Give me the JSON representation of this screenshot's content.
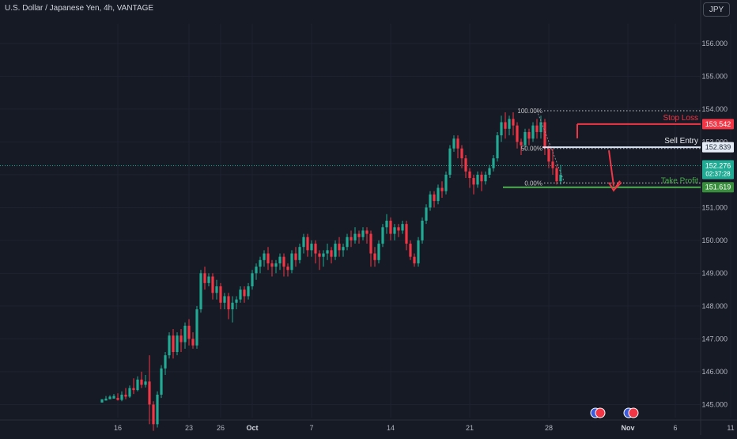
{
  "header": {
    "title": "U.S. Dollar / Japanese Yen, 4h, VANTAGE",
    "currency": "JPY"
  },
  "colors": {
    "bg": "#161a25",
    "up": "#22ab94",
    "down": "#f23645",
    "grid": "#1f2330",
    "text": "#b2b5be",
    "stop": "#f23645",
    "entry": "#e6e8ec",
    "profit": "#4caf50"
  },
  "chart_data": {
    "type": "candlestick",
    "title": "U.S. Dollar / Japanese Yen, 4h, VANTAGE",
    "ylim": [
      144.6,
      156.6
    ],
    "y_ticks": [
      156.0,
      155.0,
      154.0,
      153.0,
      152.0,
      151.0,
      150.0,
      149.0,
      148.0,
      147.0,
      146.0,
      145.0
    ],
    "y_tick_labels": [
      "156.000",
      "155.000",
      "154.000",
      "153.000",
      "152.000",
      "151.000",
      "150.000",
      "149.000",
      "148.000",
      "147.000",
      "146.000",
      "145.000"
    ],
    "x_ticks": [
      {
        "i": 4,
        "label": "16"
      },
      {
        "i": 22,
        "label": "23"
      },
      {
        "i": 30,
        "label": "26"
      },
      {
        "i": 38,
        "label": "Oct"
      },
      {
        "i": 53,
        "label": "7"
      },
      {
        "i": 73,
        "label": "14"
      },
      {
        "i": 93,
        "label": "21"
      },
      {
        "i": 113,
        "label": "28"
      },
      {
        "i": 133,
        "label": "Nov"
      },
      {
        "i": 145,
        "label": "6"
      },
      {
        "i": 159,
        "label": "11"
      }
    ],
    "grid": true,
    "candles": [
      [
        145.06,
        145.16,
        145.1,
        145.12
      ],
      [
        145.12,
        145.18,
        145.16,
        145.26
      ],
      [
        145.16,
        145.24,
        145.18,
        145.28
      ],
      [
        145.18,
        145.26,
        145.2,
        145.32
      ],
      [
        145.2,
        145.14,
        145.12,
        145.34
      ],
      [
        145.14,
        145.3,
        145.1,
        145.4
      ],
      [
        145.3,
        145.24,
        145.16,
        145.5
      ],
      [
        145.24,
        145.5,
        145.2,
        145.58
      ],
      [
        145.5,
        145.44,
        145.32,
        145.8
      ],
      [
        145.44,
        145.76,
        145.4,
        145.86
      ],
      [
        145.76,
        145.6,
        145.5,
        146.0
      ],
      [
        145.6,
        145.7,
        145.52,
        145.9
      ],
      [
        145.7,
        145.0,
        144.4,
        146.5
      ],
      [
        145.0,
        144.4,
        144.2,
        145.1
      ],
      [
        144.4,
        145.3,
        144.3,
        145.4
      ],
      [
        145.3,
        146.1,
        145.2,
        146.2
      ],
      [
        146.1,
        146.5,
        145.9,
        146.6
      ],
      [
        146.5,
        147.1,
        146.4,
        147.2
      ],
      [
        147.1,
        146.6,
        146.4,
        147.3
      ],
      [
        146.6,
        147.1,
        146.5,
        147.2
      ],
      [
        147.1,
        146.9,
        146.6,
        147.3
      ],
      [
        146.9,
        147.4,
        146.7,
        147.5
      ],
      [
        147.4,
        147.0,
        146.8,
        147.6
      ],
      [
        147.0,
        146.8,
        146.7,
        147.2
      ],
      [
        146.8,
        147.9,
        146.7,
        148.0
      ],
      [
        147.9,
        149.0,
        147.8,
        149.1
      ],
      [
        149.0,
        148.7,
        148.5,
        149.2
      ],
      [
        148.7,
        148.9,
        148.6,
        149.0
      ],
      [
        148.9,
        148.4,
        148.2,
        149.0
      ],
      [
        148.4,
        148.6,
        148.2,
        148.8
      ],
      [
        148.6,
        148.1,
        147.9,
        148.7
      ],
      [
        148.1,
        148.3,
        147.9,
        148.4
      ],
      [
        148.3,
        147.9,
        147.6,
        148.4
      ],
      [
        147.9,
        148.1,
        147.5,
        148.3
      ],
      [
        148.1,
        148.2,
        147.9,
        148.3
      ],
      [
        148.2,
        148.5,
        148.1,
        148.6
      ],
      [
        148.5,
        148.3,
        148.1,
        148.6
      ],
      [
        148.3,
        148.6,
        148.2,
        148.7
      ],
      [
        148.6,
        149.0,
        148.5,
        149.1
      ],
      [
        149.0,
        149.2,
        148.8,
        149.3
      ],
      [
        149.2,
        149.4,
        149.0,
        149.5
      ],
      [
        149.4,
        149.6,
        149.2,
        149.7
      ],
      [
        149.6,
        149.3,
        149.1,
        149.8
      ],
      [
        149.3,
        149.2,
        148.9,
        149.4
      ],
      [
        149.2,
        149.3,
        149.0,
        149.4
      ],
      [
        149.3,
        149.5,
        149.1,
        149.6
      ],
      [
        149.5,
        149.2,
        148.9,
        149.6
      ],
      [
        149.2,
        149.1,
        148.9,
        149.3
      ],
      [
        149.1,
        149.6,
        149.0,
        149.7
      ],
      [
        149.6,
        149.4,
        149.2,
        149.8
      ],
      [
        149.4,
        149.8,
        149.3,
        149.9
      ],
      [
        149.8,
        150.1,
        149.6,
        150.2
      ],
      [
        150.1,
        149.7,
        149.5,
        150.2
      ],
      [
        149.7,
        149.9,
        149.5,
        150.0
      ],
      [
        149.9,
        149.6,
        149.3,
        150.0
      ],
      [
        149.6,
        149.5,
        149.1,
        149.7
      ],
      [
        149.5,
        149.6,
        149.2,
        149.7
      ],
      [
        149.6,
        149.7,
        149.4,
        149.9
      ],
      [
        149.7,
        149.5,
        149.3,
        149.8
      ],
      [
        149.5,
        149.9,
        149.4,
        150.0
      ],
      [
        149.9,
        149.7,
        149.5,
        150.1
      ],
      [
        149.7,
        149.8,
        149.5,
        149.9
      ],
      [
        149.8,
        150.1,
        149.7,
        150.2
      ],
      [
        150.1,
        150.0,
        149.8,
        150.3
      ],
      [
        150.0,
        150.2,
        149.9,
        150.4
      ],
      [
        150.2,
        150.1,
        149.9,
        150.3
      ],
      [
        150.1,
        150.3,
        150.0,
        150.4
      ],
      [
        150.3,
        150.2,
        149.9,
        150.4
      ],
      [
        150.2,
        149.6,
        149.2,
        150.3
      ],
      [
        149.6,
        149.4,
        149.2,
        149.8
      ],
      [
        149.4,
        149.9,
        149.3,
        150.0
      ],
      [
        149.9,
        150.4,
        149.8,
        150.5
      ],
      [
        150.4,
        150.6,
        150.2,
        150.8
      ],
      [
        150.6,
        150.2,
        150.0,
        150.7
      ],
      [
        150.2,
        150.4,
        150.0,
        150.5
      ],
      [
        150.4,
        150.3,
        150.1,
        150.5
      ],
      [
        150.3,
        150.5,
        150.2,
        150.6
      ],
      [
        150.5,
        149.9,
        149.7,
        150.6
      ],
      [
        149.9,
        149.5,
        149.4,
        150.0
      ],
      [
        149.5,
        149.3,
        149.2,
        149.6
      ],
      [
        149.3,
        150.0,
        149.2,
        150.1
      ],
      [
        150.0,
        150.6,
        149.9,
        150.7
      ],
      [
        150.6,
        151.0,
        150.5,
        151.1
      ],
      [
        151.0,
        151.4,
        150.9,
        151.5
      ],
      [
        151.4,
        151.2,
        151.0,
        151.5
      ],
      [
        151.2,
        151.6,
        151.1,
        151.7
      ],
      [
        151.6,
        151.5,
        151.3,
        151.8
      ],
      [
        151.5,
        152.0,
        151.4,
        152.1
      ],
      [
        152.0,
        152.8,
        151.9,
        152.9
      ],
      [
        152.8,
        153.1,
        152.7,
        153.2
      ],
      [
        153.1,
        152.8,
        152.5,
        153.2
      ],
      [
        152.8,
        152.5,
        152.2,
        152.9
      ],
      [
        152.5,
        152.1,
        151.9,
        152.6
      ],
      [
        152.1,
        151.9,
        151.6,
        152.2
      ],
      [
        151.9,
        151.7,
        151.4,
        152.0
      ],
      [
        151.7,
        152.0,
        151.6,
        152.1
      ],
      [
        152.0,
        151.8,
        151.5,
        152.1
      ],
      [
        151.8,
        152.0,
        151.7,
        152.1
      ],
      [
        152.0,
        152.2,
        151.9,
        152.3
      ],
      [
        152.2,
        152.5,
        152.1,
        152.6
      ],
      [
        152.5,
        153.2,
        152.4,
        153.3
      ],
      [
        153.2,
        153.6,
        153.0,
        153.8
      ],
      [
        153.6,
        153.4,
        153.1,
        153.9
      ],
      [
        153.4,
        153.7,
        153.2,
        153.8
      ],
      [
        153.7,
        153.5,
        153.2,
        153.9
      ],
      [
        153.5,
        153.0,
        152.8,
        153.6
      ],
      [
        153.0,
        152.9,
        152.6,
        153.1
      ],
      [
        152.9,
        153.3,
        152.8,
        153.4
      ],
      [
        153.3,
        153.1,
        152.9,
        153.4
      ],
      [
        153.1,
        153.5,
        153.0,
        153.6
      ],
      [
        153.5,
        153.3,
        153.1,
        153.7
      ],
      [
        153.3,
        153.6,
        153.1,
        153.8
      ],
      [
        153.6,
        152.8,
        152.6,
        153.7
      ],
      [
        152.8,
        152.4,
        152.2,
        152.9
      ],
      [
        152.4,
        152.2,
        152.0,
        152.8
      ],
      [
        152.2,
        151.8,
        151.7,
        152.3
      ],
      [
        151.8,
        152.0,
        151.7,
        152.3
      ]
    ],
    "last_price": {
      "value": 152.276,
      "label": "152.276",
      "countdown": "02:37:28"
    },
    "levels": [
      {
        "name": "Stop Loss",
        "value": 153.542,
        "label": "153.542"
      },
      {
        "name": "Sell Entry",
        "value": 152.839,
        "label": "152.839"
      },
      {
        "name": "Take Profit",
        "value": 151.619,
        "label": "151.619"
      }
    ],
    "fib": [
      {
        "label": "100.00%",
        "value": 153.95
      },
      {
        "label": "50.00%",
        "value": 152.8
      },
      {
        "label": "0.00%",
        "value": 151.75
      }
    ]
  }
}
